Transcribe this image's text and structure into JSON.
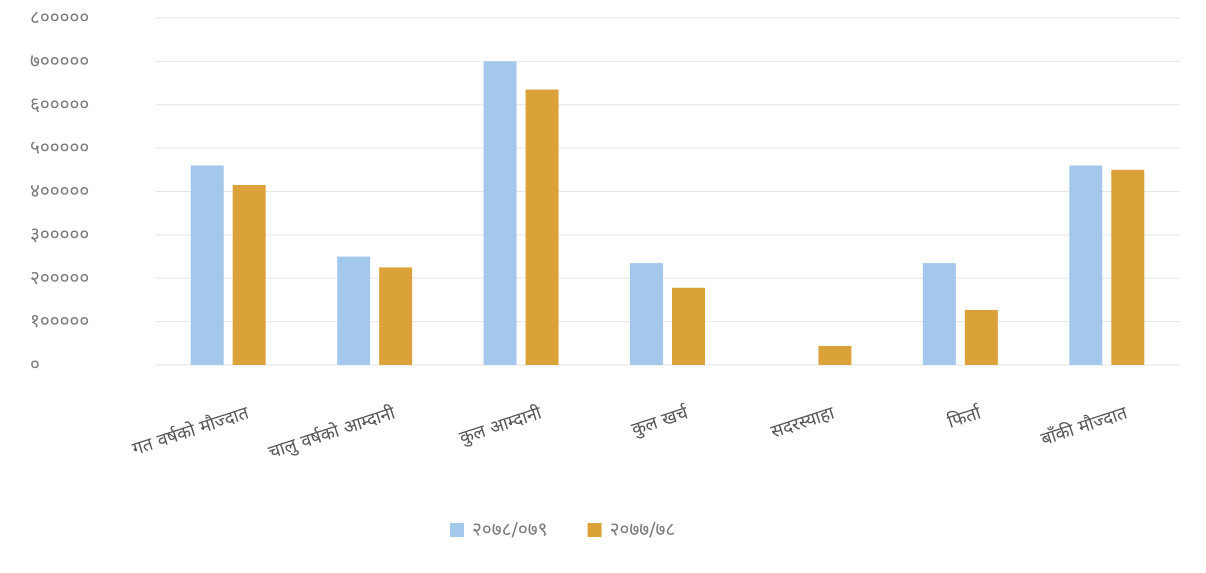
{
  "chart_data": {
    "type": "bar",
    "categories": [
      "गत वर्षको मौज्दात",
      "चालु वर्षको आम्दानी",
      "कुल आम्दानी",
      "कुल खर्च",
      "सदरस्याहा",
      "फिर्ता",
      "बाँकी मौज्दात"
    ],
    "series": [
      {
        "name": "२०७८/०७९",
        "color": "#a4c8ec",
        "values": [
          460000,
          250000,
          700000,
          235000,
          0,
          235000,
          460000
        ]
      },
      {
        "name": "२०७७/७८",
        "color": "#dba23a",
        "values": [
          415000,
          225000,
          635000,
          178000,
          44000,
          127000,
          450000
        ]
      }
    ],
    "ylim": [
      0,
      800000
    ],
    "yticks": [
      {
        "value": 0,
        "label": "०"
      },
      {
        "value": 100000,
        "label": "१०००००"
      },
      {
        "value": 200000,
        "label": "२०००००"
      },
      {
        "value": 300000,
        "label": "३०००००"
      },
      {
        "value": 400000,
        "label": "४०००००"
      },
      {
        "value": 500000,
        "label": "५०००००"
      },
      {
        "value": 600000,
        "label": "६०००००"
      },
      {
        "value": 700000,
        "label": "७०००००"
      },
      {
        "value": 800000,
        "label": "८०००००"
      }
    ],
    "grid": true,
    "legend": "bottom"
  }
}
